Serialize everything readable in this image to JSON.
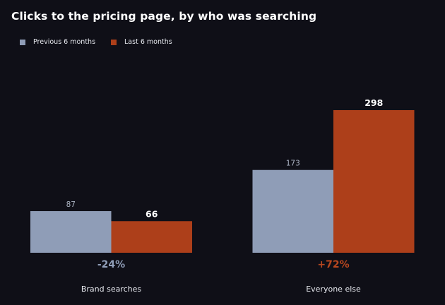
{
  "title": "Clicks to the pricing page, by who was searching",
  "legend": [
    {
      "label": "Previous 6 months",
      "color": "#8f9db7"
    },
    {
      "label": "Last 6 months",
      "color": "#ad3f1a"
    }
  ],
  "chart_data": {
    "type": "bar",
    "title": "Clicks to the pricing page, by who was searching",
    "xlabel": "",
    "ylabel": "",
    "categories": [
      "Brand searches",
      "Everyone else"
    ],
    "series": [
      {
        "name": "Previous 6 months",
        "values": [
          87,
          173
        ],
        "color": "#8f9db7"
      },
      {
        "name": "Last 6 months",
        "values": [
          66,
          298
        ],
        "color": "#ad3f1a"
      }
    ],
    "changes": [
      {
        "text": "-24%",
        "color": "#8f9db7"
      },
      {
        "text": "+72%",
        "color": "#b8471f"
      }
    ],
    "grid": false,
    "legend_position": "top-left"
  }
}
